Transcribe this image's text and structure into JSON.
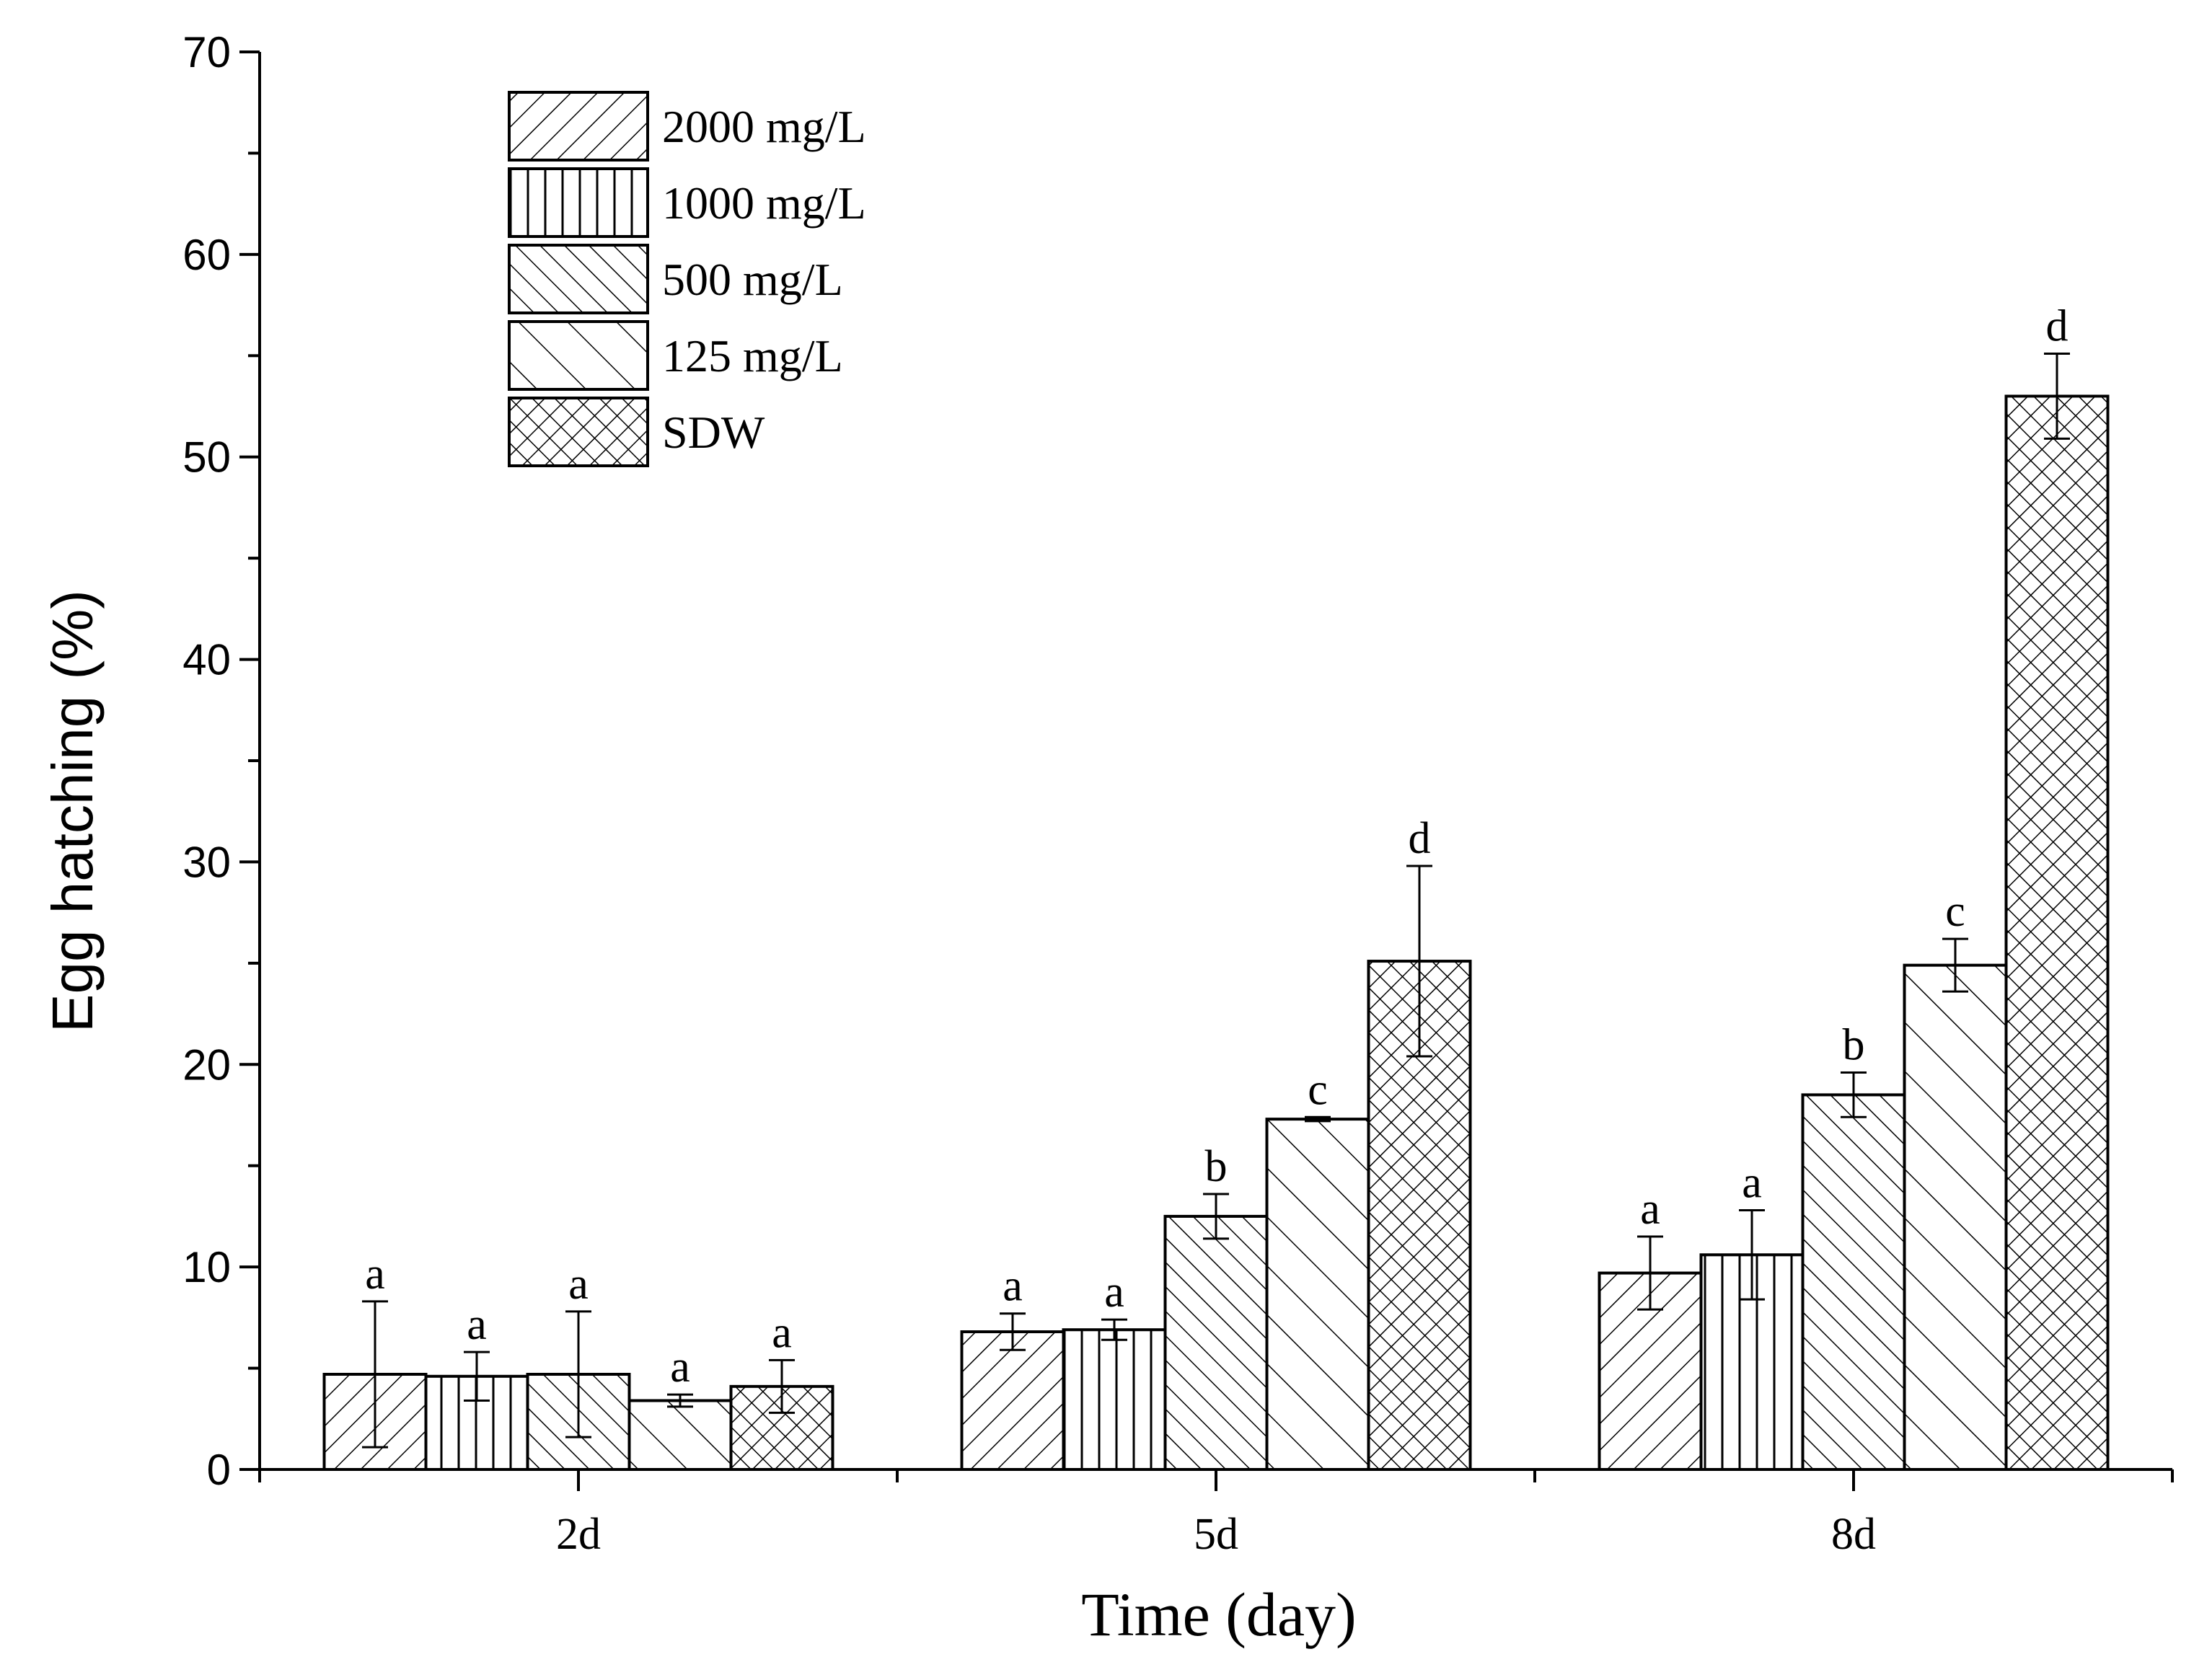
{
  "chart_data": {
    "type": "bar",
    "title": "",
    "xlabel": "Time (day)",
    "ylabel": "Egg hatching (%)",
    "ylim": [
      0,
      70
    ],
    "yticks": [
      0,
      10,
      20,
      30,
      40,
      50,
      60,
      70
    ],
    "categories": [
      "2d",
      "5d",
      "8d"
    ],
    "legend_position": "top-left",
    "series": [
      {
        "name": "2000 mg/L",
        "pattern": "diag-forward",
        "values": [
          4.7,
          6.8,
          9.7
        ],
        "errors": [
          3.6,
          0.9,
          1.8
        ],
        "letters": [
          "a",
          "a",
          "a"
        ]
      },
      {
        "name": "1000 mg/L",
        "pattern": "vertical",
        "values": [
          4.6,
          6.9,
          10.6
        ],
        "errors": [
          1.2,
          0.5,
          2.2
        ],
        "letters": [
          "a",
          "a",
          "a"
        ]
      },
      {
        "name": "500 mg/L",
        "pattern": "diag-back-dense",
        "values": [
          4.7,
          12.5,
          18.5
        ],
        "errors": [
          3.1,
          1.1,
          1.1
        ],
        "letters": [
          "a",
          "b",
          "b"
        ]
      },
      {
        "name": "125 mg/L",
        "pattern": "diag-back-sparse",
        "values": [
          3.4,
          17.3,
          24.9
        ],
        "errors": [
          0.3,
          0.1,
          1.3
        ],
        "letters": [
          "a",
          "c",
          "c"
        ]
      },
      {
        "name": "SDW",
        "pattern": "crosshatch",
        "values": [
          4.1,
          25.1,
          53.0
        ],
        "errors": [
          1.3,
          4.7,
          2.1
        ],
        "letters": [
          "a",
          "d",
          "d"
        ]
      }
    ]
  }
}
